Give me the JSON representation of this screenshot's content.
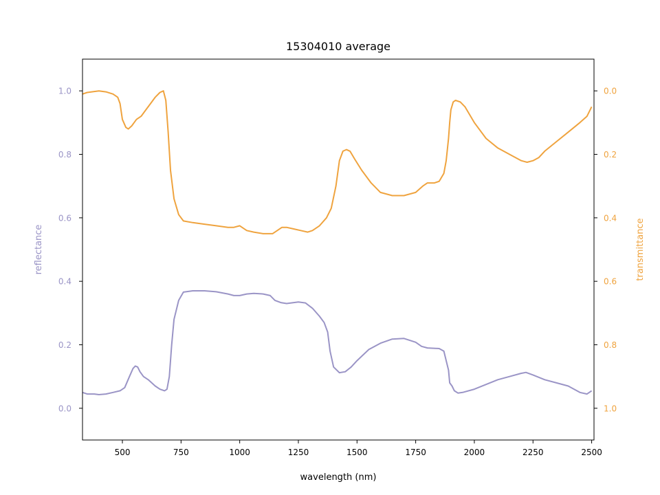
{
  "chart_data": {
    "type": "line",
    "title": "15304010 average",
    "xlabel": "wavelength (nm)",
    "ylabel_left": "reflectance",
    "ylabel_right": "transmittance",
    "xlim": [
      330,
      2510
    ],
    "ylim_left": [
      -0.1,
      1.1
    ],
    "ylim_right": [
      1.1,
      -0.1
    ],
    "right_axis_inverted": true,
    "xticks": [
      500,
      750,
      1000,
      1250,
      1500,
      1750,
      2000,
      2250,
      2500
    ],
    "yticks_left": [
      0.0,
      0.2,
      0.4,
      0.6,
      0.8,
      1.0
    ],
    "yticks_right": [
      0.0,
      0.2,
      0.4,
      0.6,
      0.8,
      1.0
    ],
    "grid": false,
    "colors": {
      "reflectance": "#9a94c6",
      "transmittance": "#efa33e"
    },
    "series": [
      {
        "axis": "left",
        "x": [
          330,
          350,
          380,
          400,
          430,
          460,
          490,
          510,
          530,
          545,
          555,
          565,
          575,
          590,
          610,
          625,
          640,
          660,
          680,
          690,
          700,
          710,
          720,
          740,
          760,
          800,
          850,
          900,
          950,
          975,
          1000,
          1030,
          1060,
          1100,
          1130,
          1150,
          1175,
          1200,
          1250,
          1280,
          1310,
          1340,
          1360,
          1375,
          1385,
          1400,
          1425,
          1450,
          1475,
          1500,
          1550,
          1600,
          1650,
          1700,
          1750,
          1775,
          1800,
          1850,
          1870,
          1880,
          1890,
          1895,
          1905,
          1915,
          1930,
          1950,
          2000,
          2050,
          2100,
          2150,
          2200,
          2220,
          2250,
          2300,
          2350,
          2400,
          2450,
          2480,
          2500
        ],
        "y": [
          0.05,
          0.045,
          0.045,
          0.043,
          0.045,
          0.05,
          0.055,
          0.065,
          0.1,
          0.125,
          0.133,
          0.13,
          0.115,
          0.1,
          0.09,
          0.08,
          0.07,
          0.06,
          0.055,
          0.06,
          0.1,
          0.2,
          0.28,
          0.34,
          0.366,
          0.37,
          0.37,
          0.367,
          0.36,
          0.355,
          0.355,
          0.36,
          0.362,
          0.36,
          0.355,
          0.34,
          0.333,
          0.33,
          0.335,
          0.332,
          0.315,
          0.29,
          0.27,
          0.24,
          0.18,
          0.13,
          0.112,
          0.115,
          0.13,
          0.15,
          0.185,
          0.205,
          0.218,
          0.22,
          0.208,
          0.195,
          0.19,
          0.188,
          0.18,
          0.15,
          0.12,
          0.08,
          0.07,
          0.055,
          0.048,
          0.05,
          0.06,
          0.075,
          0.09,
          0.1,
          0.11,
          0.113,
          0.105,
          0.09,
          0.08,
          0.07,
          0.05,
          0.045,
          0.055
        ]
      },
      {
        "axis": "right",
        "x": [
          330,
          350,
          380,
          400,
          430,
          460,
          480,
          490,
          500,
          515,
          525,
          540,
          550,
          560,
          580,
          600,
          620,
          640,
          660,
          675,
          685,
          695,
          705,
          720,
          740,
          760,
          800,
          850,
          900,
          950,
          975,
          1000,
          1030,
          1060,
          1100,
          1140,
          1160,
          1180,
          1200,
          1230,
          1260,
          1290,
          1310,
          1340,
          1370,
          1390,
          1410,
          1425,
          1440,
          1455,
          1470,
          1490,
          1520,
          1560,
          1600,
          1650,
          1700,
          1750,
          1780,
          1800,
          1830,
          1850,
          1870,
          1880,
          1890,
          1895,
          1900,
          1910,
          1920,
          1940,
          1960,
          2000,
          2050,
          2100,
          2150,
          2200,
          2225,
          2250,
          2275,
          2300,
          2350,
          2400,
          2450,
          2480,
          2500
        ],
        "y": [
          0.01,
          0.005,
          0.002,
          0.0,
          0.003,
          0.01,
          0.02,
          0.04,
          0.09,
          0.115,
          0.12,
          0.11,
          0.1,
          0.09,
          0.08,
          0.06,
          0.04,
          0.02,
          0.005,
          0.0,
          0.03,
          0.13,
          0.25,
          0.34,
          0.39,
          0.41,
          0.415,
          0.42,
          0.425,
          0.43,
          0.43,
          0.425,
          0.44,
          0.445,
          0.45,
          0.45,
          0.44,
          0.43,
          0.43,
          0.435,
          0.44,
          0.445,
          0.44,
          0.425,
          0.4,
          0.37,
          0.3,
          0.22,
          0.19,
          0.185,
          0.19,
          0.215,
          0.25,
          0.29,
          0.32,
          0.33,
          0.33,
          0.32,
          0.3,
          0.29,
          0.29,
          0.285,
          0.26,
          0.22,
          0.15,
          0.1,
          0.06,
          0.035,
          0.03,
          0.035,
          0.05,
          0.1,
          0.15,
          0.18,
          0.2,
          0.22,
          0.225,
          0.22,
          0.21,
          0.19,
          0.16,
          0.13,
          0.1,
          0.08,
          0.05
        ]
      }
    ]
  }
}
